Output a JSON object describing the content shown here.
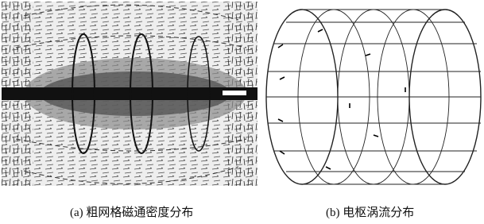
{
  "figure": {
    "panels": [
      {
        "caption": "(a) 粗网格磁通密度分布"
      },
      {
        "caption": "(b) 电枢涡流分布"
      }
    ]
  }
}
